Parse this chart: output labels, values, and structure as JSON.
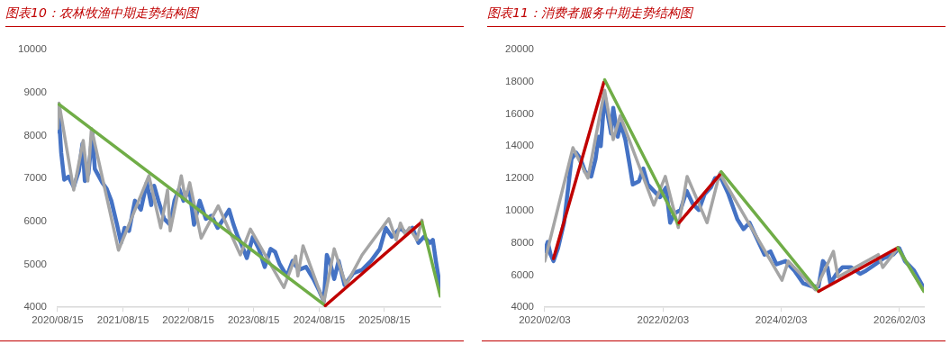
{
  "chart_data": [
    {
      "type": "line",
      "title": "图表10：农林牧渔中期走势结构图",
      "marker": "none",
      "xlim": [
        "2020-08-15",
        "2026-06-23"
      ],
      "xticks": [
        {
          "value": "2020-08-15",
          "label": "2020/08/15"
        },
        {
          "value": "2021-08-15",
          "label": "2021/08/15"
        },
        {
          "value": "2022-08-15",
          "label": "2022/08/15"
        },
        {
          "value": "2023-08-15",
          "label": "2023/08/15"
        },
        {
          "value": "2024-08-15",
          "label": "2024/08/15"
        },
        {
          "value": "2025-08-15",
          "label": "2025/08/15"
        }
      ],
      "ylim": [
        4000,
        10000
      ],
      "yticks": [
        4000,
        5000,
        6000,
        7000,
        8000,
        9000,
        10000
      ],
      "series": [
        {
          "color": "#4472c4",
          "x": [
            "2020-08-15",
            "2020-08-18",
            "2020-09-04",
            "2020-09-21",
            "2020-10-15",
            "2020-11-13",
            "2020-12-12",
            "2021-01-01",
            "2021-01-14",
            "2021-02-03",
            "2021-02-25",
            "2021-03-11",
            "2021-04-22",
            "2021-05-16",
            "2021-06-11",
            "2021-07-13",
            "2021-08-04",
            "2021-08-24",
            "2021-09-18",
            "2021-10-21",
            "2021-11-23",
            "2021-12-26",
            "2022-01-20",
            "2022-02-05",
            "2022-03-01",
            "2022-04-02",
            "2022-05-06",
            "2022-05-30",
            "2022-06-25",
            "2022-07-19",
            "2022-08-21",
            "2022-09-16",
            "2022-10-18",
            "2022-11-21",
            "2022-12-23",
            "2023-01-26",
            "2023-02-28",
            "2023-03-31",
            "2023-04-25",
            "2023-05-19",
            "2023-06-05",
            "2023-07-08",
            "2023-08-11",
            "2023-09-13",
            "2023-10-16",
            "2023-11-18",
            "2023-12-13",
            "2024-01-07",
            "2024-02-17",
            "2024-03-20",
            "2024-04-23",
            "2024-06-03",
            "2024-07-14",
            "2024-08-16",
            "2024-09-10",
            "2024-09-27",
            "2024-10-17",
            "2024-11-07",
            "2024-12-02",
            "2025-01-04",
            "2025-02-23",
            "2025-04-12",
            "2025-06-01",
            "2025-07-20",
            "2025-08-22",
            "2025-09-25",
            "2025-11-13",
            "2025-12-16",
            "2026-01-18",
            "2026-02-21",
            "2026-03-23",
            "2026-04-26",
            "2026-05-12",
            "2026-05-29",
            "2026-06-23"
          ],
          "values": [
            8090,
            8720,
            7600,
            6970,
            7040,
            6800,
            7180,
            7810,
            6940,
            7110,
            8050,
            7220,
            6900,
            6760,
            6480,
            5920,
            5500,
            5850,
            5780,
            6480,
            6270,
            6900,
            6380,
            6830,
            6480,
            6060,
            5920,
            6480,
            6760,
            6480,
            6760,
            5920,
            6480,
            6060,
            6130,
            5850,
            6060,
            6270,
            5920,
            5640,
            5500,
            5150,
            5640,
            5360,
            4940,
            5360,
            5290,
            5010,
            4730,
            5080,
            4870,
            4940,
            4660,
            4380,
            4140,
            5220,
            5010,
            4660,
            5080,
            4520,
            4800,
            4870,
            5080,
            5360,
            5850,
            5640,
            5850,
            5710,
            5850,
            5500,
            5640,
            5500,
            5570,
            5080,
            4450
          ]
        },
        {
          "color": "#a5a5a5",
          "x": [
            "2020-08-15",
            "2020-08-23",
            "2020-11-13",
            "2021-01-05",
            "2021-01-31",
            "2021-02-20",
            "2021-07-21",
            "2022-01-07",
            "2022-03-14",
            "2022-04-21",
            "2022-05-06",
            "2022-07-07",
            "2022-07-30",
            "2022-08-23",
            "2022-10-26",
            "2023-01-29",
            "2023-06-02",
            "2023-07-28",
            "2024-01-31",
            "2024-04-06",
            "2024-04-18",
            "2024-05-17",
            "2024-09-10",
            "2024-11-07",
            "2025-01-12",
            "2025-04-12",
            "2025-09-08",
            "2025-10-19",
            "2025-11-12",
            "2025-12-08",
            "2026-01-01",
            "2026-02-12",
            "2026-03-12"
          ],
          "values": [
            8160,
            8750,
            6730,
            7880,
            6940,
            8160,
            5330,
            7060,
            5850,
            6730,
            5780,
            7060,
            6520,
            6900,
            5610,
            6360,
            5220,
            5820,
            4460,
            5190,
            4730,
            5430,
            4110,
            5360,
            4520,
            5220,
            6060,
            5570,
            5960,
            5710,
            5850,
            5570,
            6030
          ]
        },
        {
          "color": "#70ad47",
          "x": [
            "2020-08-23",
            "2024-09-19"
          ],
          "values": [
            8720,
            4040
          ]
        },
        {
          "color": "#c00000",
          "x": [
            "2024-09-19",
            "2026-03-12"
          ],
          "values": [
            4040,
            5990
          ]
        },
        {
          "color": "#70ad47",
          "x": [
            "2026-03-12",
            "2026-06-23"
          ],
          "values": [
            5990,
            4260
          ]
        }
      ]
    },
    {
      "type": "line",
      "title": "图表11：消费者服务中期走势结构图",
      "marker": "none",
      "xlim": [
        "2020-02-03",
        "2026-07-04"
      ],
      "xticks": [
        {
          "value": "2020-02-03",
          "label": "2020/02/03"
        },
        {
          "value": "2022-02-03",
          "label": "2022/02/03"
        },
        {
          "value": "2024-02-03",
          "label": "2024/02/03"
        },
        {
          "value": "2026-02-03",
          "label": "2026/02/03"
        }
      ],
      "ylim": [
        4000,
        20000
      ],
      "yticks": [
        4000,
        6000,
        8000,
        10000,
        12000,
        14000,
        16000,
        18000,
        20000
      ],
      "series": [
        {
          "color": "#4472c4",
          "x": [
            "2020-02-03",
            "2020-02-21",
            "2020-03-10",
            "2020-03-28",
            "2020-04-25",
            "2020-06-01",
            "2020-06-29",
            "2020-07-17",
            "2020-08-14",
            "2020-09-11",
            "2020-10-09",
            "2020-11-16",
            "2020-12-13",
            "2021-01-01",
            "2021-01-14",
            "2021-02-07",
            "2021-03-01",
            "2021-03-19",
            "2021-04-01",
            "2021-04-29",
            "2021-05-18",
            "2021-06-15",
            "2021-07-12",
            "2021-07-31",
            "2021-09-07",
            "2021-10-04",
            "2021-11-01",
            "2021-12-08",
            "2022-01-15",
            "2022-02-21",
            "2022-03-19",
            "2022-04-16",
            "2022-05-22",
            "2022-06-29",
            "2022-08-05",
            "2022-09-12",
            "2022-10-18",
            "2022-11-25",
            "2022-12-22",
            "2023-01-28",
            "2023-03-14",
            "2023-05-09",
            "2023-06-15",
            "2023-07-22",
            "2023-08-28",
            "2023-10-23",
            "2023-11-29",
            "2024-01-05",
            "2024-03-01",
            "2024-04-25",
            "2024-06-19",
            "2024-08-14",
            "2024-09-21",
            "2024-10-18",
            "2024-11-15",
            "2024-12-03",
            "2025-01-10",
            "2025-02-16",
            "2025-04-11",
            "2025-06-05",
            "2025-07-12",
            "2025-09-07",
            "2025-11-01",
            "2025-12-26",
            "2026-02-02",
            "2026-03-09",
            "2026-05-04",
            "2026-06-29"
          ],
          "values": [
            7470,
            8060,
            7270,
            6870,
            7670,
            9250,
            11620,
            13210,
            13600,
            13210,
            12420,
            12120,
            13210,
            14590,
            14000,
            17170,
            15780,
            14790,
            16380,
            14590,
            15390,
            14400,
            12810,
            11620,
            11820,
            12610,
            11620,
            11230,
            10830,
            11430,
            9250,
            9840,
            10040,
            11230,
            10430,
            10040,
            11030,
            11430,
            12020,
            12020,
            11030,
            9450,
            8850,
            9250,
            8460,
            7270,
            7470,
            6670,
            6870,
            6280,
            5480,
            5290,
            5290,
            6870,
            6480,
            5490,
            6080,
            6480,
            6480,
            6080,
            6280,
            6670,
            7070,
            7270,
            7670,
            6870,
            6280,
            5290
          ]
        },
        {
          "color": "#a5a5a5",
          "x": [
            "2020-02-03",
            "2020-07-26",
            "2020-10-27",
            "2021-02-07",
            "2021-04-01",
            "2021-05-14",
            "2021-12-08",
            "2022-02-17",
            "2022-05-08",
            "2022-07-02",
            "2022-11-02",
            "2023-01-19",
            "2024-02-08",
            "2024-03-18",
            "2024-09-02",
            "2024-12-22",
            "2025-01-19",
            "2025-09-25",
            "2025-10-23",
            "2026-01-24",
            "2026-06-29"
          ],
          "values": [
            6870,
            13900,
            12020,
            17470,
            14400,
            15880,
            10340,
            12120,
            8950,
            12120,
            9250,
            12320,
            5680,
            6870,
            5090,
            7470,
            5880,
            7270,
            6480,
            7670,
            5090
          ]
        },
        {
          "color": "#c00000",
          "x": [
            "2020-03-28",
            "2021-02-02"
          ],
          "values": [
            7030,
            17960
          ]
        },
        {
          "color": "#70ad47",
          "x": [
            "2021-02-07",
            "2022-05-08"
          ],
          "values": [
            18120,
            9150
          ]
        },
        {
          "color": "#c00000",
          "x": [
            "2022-05-13",
            "2023-01-19"
          ],
          "values": [
            9250,
            12220
          ]
        },
        {
          "color": "#70ad47",
          "x": [
            "2023-01-28",
            "2024-09-21"
          ],
          "values": [
            12420,
            4990
          ]
        },
        {
          "color": "#c00000",
          "x": [
            "2024-09-21",
            "2026-01-24"
          ],
          "values": [
            4990,
            7700
          ]
        },
        {
          "color": "#70ad47",
          "x": [
            "2026-01-24",
            "2026-07-04"
          ],
          "values": [
            7700,
            4990
          ]
        }
      ]
    }
  ]
}
